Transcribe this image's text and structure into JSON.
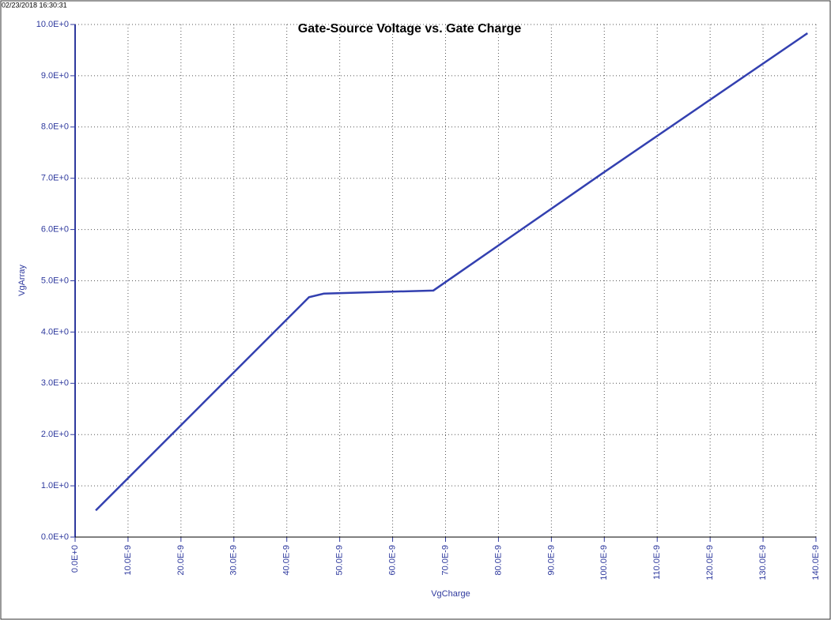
{
  "chart_data": {
    "type": "line",
    "timestamp": "02/23/2018 16:30:31",
    "title": "Gate-Source Voltage vs. Gate Charge",
    "x_label": "VgCharge",
    "y_label": "VgArray",
    "x": [
      3.9e-09,
      4.42e-08,
      4.7e-08,
      6.77e-08,
      9.97e-08,
      1.384e-07
    ],
    "series": [
      {
        "color": "#3340b0",
        "values": [
          0.52,
          4.68,
          4.75,
          4.81,
          7.1,
          9.83
        ]
      }
    ],
    "xlim": [
      0,
      1.4e-07
    ],
    "ylim": [
      0,
      10
    ],
    "grid": true,
    "xticks": [
      {
        "value": 0,
        "label": "0.0E+0"
      },
      {
        "value": 1e-08,
        "label": "10.0E-9"
      },
      {
        "value": 2e-08,
        "label": "20.0E-9"
      },
      {
        "value": 3e-08,
        "label": "30.0E-9"
      },
      {
        "value": 4e-08,
        "label": "40.0E-9"
      },
      {
        "value": 5e-08,
        "label": "50.0E-9"
      },
      {
        "value": 6e-08,
        "label": "60.0E-9"
      },
      {
        "value": 7e-08,
        "label": "70.0E-9"
      },
      {
        "value": 8e-08,
        "label": "80.0E-9"
      },
      {
        "value": 9e-08,
        "label": "90.0E-9"
      },
      {
        "value": 1e-07,
        "label": "100.0E-9"
      },
      {
        "value": 1.1e-07,
        "label": "110.0E-9"
      },
      {
        "value": 1.2e-07,
        "label": "120.0E-9"
      },
      {
        "value": 1.3e-07,
        "label": "130.0E-9"
      },
      {
        "value": 1.4e-07,
        "label": "140.0E-9"
      }
    ],
    "yticks": [
      {
        "value": 0,
        "label": "0.0E+0"
      },
      {
        "value": 1,
        "label": "1.0E+0"
      },
      {
        "value": 2,
        "label": "2.0E+0"
      },
      {
        "value": 3,
        "label": "3.0E+0"
      },
      {
        "value": 4,
        "label": "4.0E+0"
      },
      {
        "value": 5,
        "label": "5.0E+0"
      },
      {
        "value": 6,
        "label": "6.0E+0"
      },
      {
        "value": 7,
        "label": "7.0E+0"
      },
      {
        "value": 8,
        "label": "8.0E+0"
      },
      {
        "value": 9,
        "label": "9.0E+0"
      },
      {
        "value": 10,
        "label": "10.0E+0"
      }
    ]
  }
}
